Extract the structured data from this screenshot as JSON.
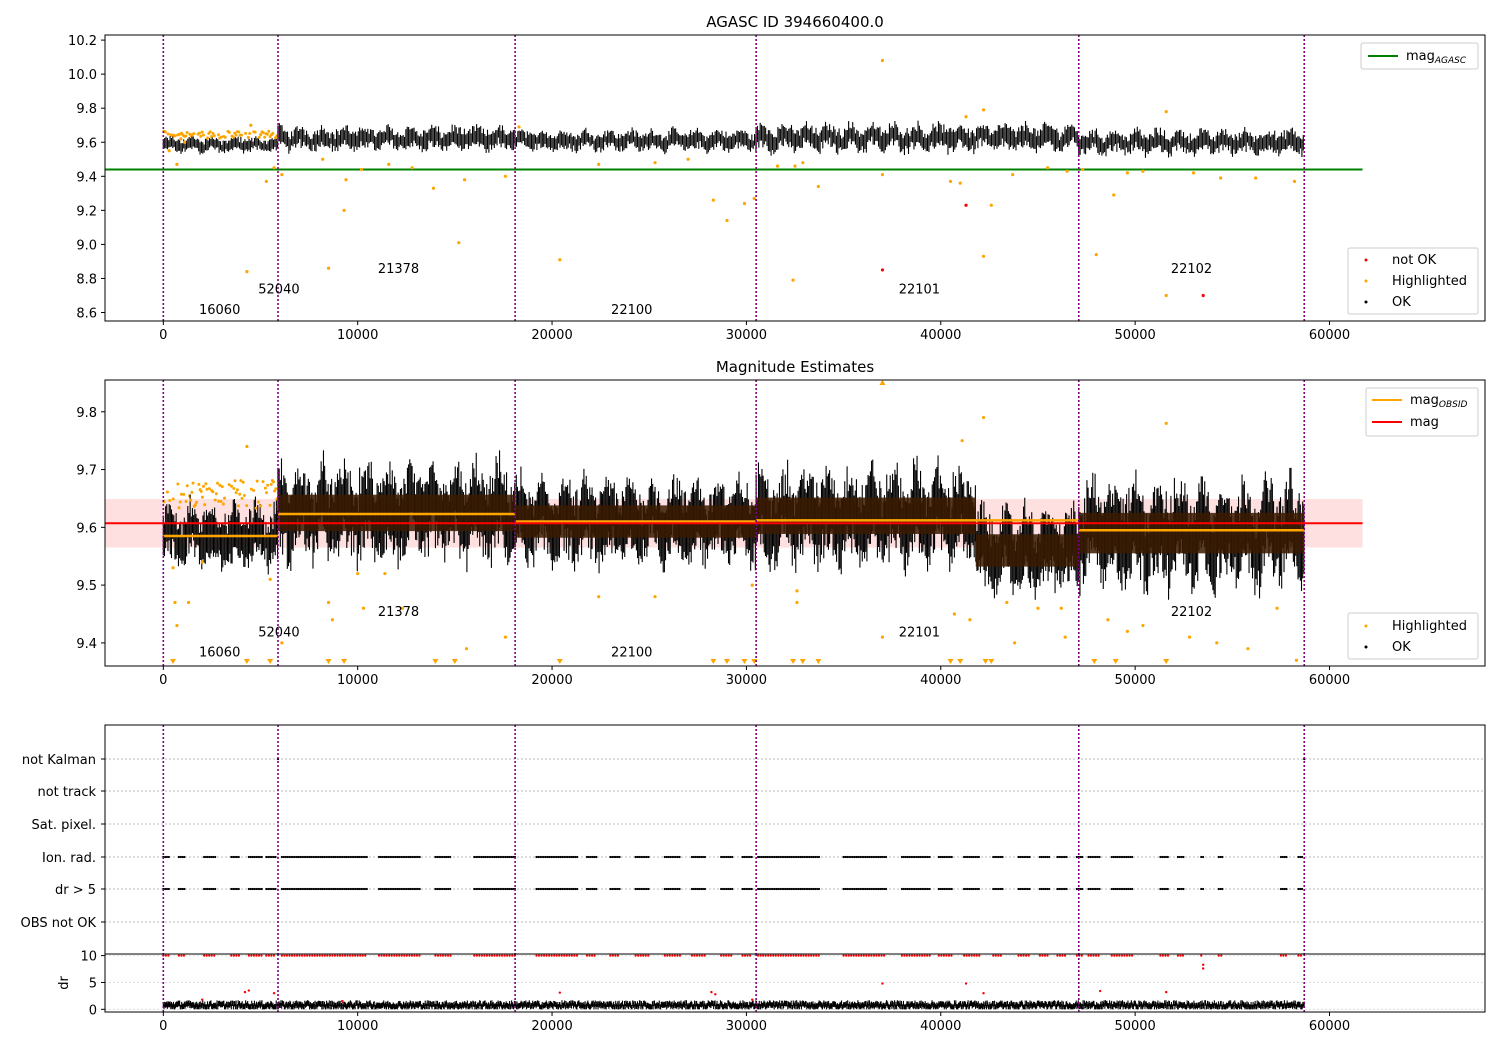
{
  "chart_data": [
    {
      "type": "scatter",
      "title": "AGASC ID 394660400.0",
      "xlim": [
        -3000,
        68000
      ],
      "ylim": [
        8.55,
        10.23
      ],
      "x_ticks": [
        0,
        10000,
        20000,
        30000,
        40000,
        50000,
        60000
      ],
      "y_ticks": [
        8.6,
        8.8,
        9.0,
        9.2,
        9.4,
        9.6,
        9.8,
        10.0,
        10.2
      ],
      "obsid_boundaries": [
        0,
        5900,
        18100,
        30500,
        47100,
        58700
      ],
      "obsid_labels": [
        {
          "text": "16060",
          "x": 2900,
          "y": 8.62
        },
        {
          "text": "52040",
          "x": 5950,
          "y": 8.74
        },
        {
          "text": "21378",
          "x": 12100,
          "y": 8.86
        },
        {
          "text": "22100",
          "x": 24100,
          "y": 8.62
        },
        {
          "text": "22101",
          "x": 38900,
          "y": 8.74
        },
        {
          "text": "22102",
          "x": 52900,
          "y": 8.86
        }
      ],
      "mag_agasc": 9.44,
      "mag_agasc_xrange": [
        -3000,
        61700
      ],
      "segments": [
        {
          "x": [
            0,
            5900
          ],
          "mean": 9.585,
          "half_width": 0.025,
          "color": "orange"
        },
        {
          "x": [
            5900,
            18100
          ],
          "mean": 9.62,
          "half_width": 0.04,
          "color": "black"
        },
        {
          "x": [
            18100,
            30500
          ],
          "mean": 9.61,
          "half_width": 0.035,
          "color": "black"
        },
        {
          "x": [
            30500,
            47100
          ],
          "mean": 9.625,
          "half_width": 0.045,
          "color": "black"
        },
        {
          "x": [
            47100,
            58700
          ],
          "mean": 9.6,
          "half_width": 0.04,
          "color": "black"
        }
      ],
      "highlighted_points": [
        [
          300,
          9.55
        ],
        [
          700,
          9.47
        ],
        [
          900,
          9.62
        ],
        [
          1100,
          9.6
        ],
        [
          4300,
          8.84
        ],
        [
          4500,
          9.7
        ],
        [
          5300,
          9.37
        ],
        [
          5700,
          9.45
        ],
        [
          6100,
          9.41
        ],
        [
          8500,
          8.86
        ],
        [
          8200,
          9.5
        ],
        [
          9300,
          9.2
        ],
        [
          9400,
          9.38
        ],
        [
          10200,
          9.44
        ],
        [
          11600,
          9.47
        ],
        [
          12800,
          9.45
        ],
        [
          13900,
          9.33
        ],
        [
          15200,
          9.01
        ],
        [
          15500,
          9.38
        ],
        [
          17600,
          9.4
        ],
        [
          18300,
          9.69
        ],
        [
          20400,
          8.91
        ],
        [
          22400,
          9.47
        ],
        [
          25300,
          9.48
        ],
        [
          27000,
          9.5
        ],
        [
          28300,
          9.26
        ],
        [
          29000,
          9.14
        ],
        [
          29900,
          9.24
        ],
        [
          30400,
          9.27
        ],
        [
          31600,
          9.46
        ],
        [
          32400,
          8.79
        ],
        [
          32500,
          9.46
        ],
        [
          32900,
          9.48
        ],
        [
          33700,
          9.34
        ],
        [
          37000,
          10.08
        ],
        [
          37000,
          9.41
        ],
        [
          40500,
          9.37
        ],
        [
          41000,
          9.36
        ],
        [
          41300,
          9.75
        ],
        [
          42200,
          9.79
        ],
        [
          42200,
          8.93
        ],
        [
          42600,
          9.23
        ],
        [
          43700,
          9.41
        ],
        [
          45500,
          9.45
        ],
        [
          46500,
          9.43
        ],
        [
          47300,
          9.44
        ],
        [
          48000,
          8.94
        ],
        [
          48900,
          9.29
        ],
        [
          49600,
          9.42
        ],
        [
          50400,
          9.43
        ],
        [
          51600,
          9.78
        ],
        [
          51600,
          8.7
        ],
        [
          53000,
          9.42
        ],
        [
          54400,
          9.39
        ],
        [
          56200,
          9.39
        ],
        [
          58200,
          9.37
        ]
      ],
      "not_ok_points": [
        [
          37000,
          8.85
        ],
        [
          41300,
          9.23
        ],
        [
          53500,
          8.7
        ]
      ],
      "legend_upper": [
        "mag_AGASC"
      ],
      "legend_lower": [
        "not OK",
        "Highlighted",
        "OK"
      ],
      "legend_upper_loc": "upper right",
      "legend_lower_loc": "lower right"
    },
    {
      "type": "scatter",
      "title": "Magnitude Estimates",
      "xlim": [
        -3000,
        68000
      ],
      "ylim": [
        9.36,
        9.855
      ],
      "x_ticks": [
        0,
        10000,
        20000,
        30000,
        40000,
        50000,
        60000
      ],
      "y_ticks": [
        9.4,
        9.5,
        9.6,
        9.7,
        9.8
      ],
      "obsid_boundaries": [
        0,
        5900,
        18100,
        30500,
        47100,
        58700
      ],
      "obsid_labels": [
        {
          "text": "16060",
          "x": 2900,
          "y": 9.385
        },
        {
          "text": "52040",
          "x": 5950,
          "y": 9.42
        },
        {
          "text": "21378",
          "x": 12100,
          "y": 9.455
        },
        {
          "text": "22100",
          "x": 24100,
          "y": 9.385
        },
        {
          "text": "22101",
          "x": 38900,
          "y": 9.42
        },
        {
          "text": "22102",
          "x": 52900,
          "y": 9.455
        }
      ],
      "mag": 9.607,
      "mag_band": [
        9.565,
        9.649
      ],
      "mag_xrange": [
        -3000,
        61700
      ],
      "mag_obsid": [
        {
          "x": [
            0,
            5900
          ],
          "mean": 9.585
        },
        {
          "x": [
            5900,
            18100
          ],
          "mean": 9.623
        },
        {
          "x": [
            18100,
            30500
          ],
          "mean": 9.61
        },
        {
          "x": [
            30500,
            47100
          ],
          "mean": 9.612
        },
        {
          "x": [
            47100,
            58700
          ],
          "mean": 9.595
        }
      ],
      "segments": [
        {
          "x": [
            0,
            5900
          ],
          "mean": 9.585,
          "half_width": 0.03,
          "color": "orange"
        },
        {
          "x": [
            5900,
            18100
          ],
          "mean": 9.625,
          "half_width": 0.045,
          "color": "black"
        },
        {
          "x": [
            18100,
            30500
          ],
          "mean": 9.61,
          "half_width": 0.04,
          "color": "black"
        },
        {
          "x": [
            30500,
            41800
          ],
          "mean": 9.62,
          "half_width": 0.045,
          "color": "black"
        },
        {
          "x": [
            41800,
            47100
          ],
          "mean": 9.56,
          "half_width": 0.04,
          "color": "black"
        },
        {
          "x": [
            47100,
            58700
          ],
          "mean": 9.59,
          "half_width": 0.05,
          "color": "black"
        }
      ],
      "highlighted_points": [
        [
          500,
          9.53
        ],
        [
          600,
          9.47
        ],
        [
          700,
          9.43
        ],
        [
          1300,
          9.47
        ],
        [
          2000,
          9.54
        ],
        [
          4300,
          9.74
        ],
        [
          5500,
          9.51
        ],
        [
          6100,
          9.4
        ],
        [
          8500,
          9.47
        ],
        [
          8700,
          9.44
        ],
        [
          10000,
          9.52
        ],
        [
          10300,
          9.46
        ],
        [
          11400,
          9.52
        ],
        [
          12300,
          9.46
        ],
        [
          15600,
          9.39
        ],
        [
          17600,
          9.41
        ],
        [
          22400,
          9.48
        ],
        [
          25300,
          9.48
        ],
        [
          30300,
          9.5
        ],
        [
          32600,
          9.49
        ],
        [
          32600,
          9.47
        ],
        [
          37000,
          9.85
        ],
        [
          37000,
          9.41
        ],
        [
          40700,
          9.45
        ],
        [
          41100,
          9.75
        ],
        [
          41500,
          9.44
        ],
        [
          42200,
          9.79
        ],
        [
          43400,
          9.47
        ],
        [
          43800,
          9.4
        ],
        [
          45000,
          9.46
        ],
        [
          46200,
          9.46
        ],
        [
          46400,
          9.41
        ],
        [
          48600,
          9.44
        ],
        [
          49600,
          9.42
        ],
        [
          50400,
          9.43
        ],
        [
          51600,
          9.78
        ],
        [
          52800,
          9.41
        ],
        [
          54200,
          9.4
        ],
        [
          55800,
          9.39
        ],
        [
          57300,
          9.46
        ],
        [
          58300,
          9.37
        ]
      ],
      "low_markers_x": [
        500,
        4300,
        5500,
        8500,
        9300,
        14000,
        15000,
        20400,
        28300,
        29000,
        29900,
        30400,
        32400,
        32900,
        33700,
        40500,
        41000,
        42300,
        42600,
        47900,
        49000,
        51600
      ],
      "legend_upper": [
        "mag_OBSID",
        "mag"
      ],
      "legend_lower": [
        "Highlighted",
        "OK"
      ],
      "legend_upper_loc": "upper right",
      "legend_lower_loc": "lower right"
    },
    {
      "type": "scatter",
      "title": "",
      "xlim": [
        -3000,
        68000
      ],
      "x_ticks": [
        0,
        10000,
        20000,
        30000,
        40000,
        50000,
        60000
      ],
      "categories": [
        "not Kalman",
        "not track",
        "Sat. pixel.",
        "Ion. rad.",
        "dr > 5",
        "OBS not OK"
      ],
      "obsid_boundaries": [
        0,
        5900,
        18100,
        30500,
        47100,
        58700
      ],
      "flag_x_ranges": [
        [
          0,
          300
        ],
        [
          800,
          1100
        ],
        [
          2100,
          2700
        ],
        [
          3500,
          3900
        ],
        [
          4400,
          5100
        ],
        [
          5300,
          5800
        ],
        [
          6100,
          10500
        ],
        [
          11100,
          13200
        ],
        [
          14000,
          14800
        ],
        [
          16000,
          18100
        ],
        [
          19200,
          21300
        ],
        [
          21800,
          22300
        ],
        [
          23000,
          23500
        ],
        [
          24300,
          25000
        ],
        [
          25800,
          26600
        ],
        [
          27200,
          27900
        ],
        [
          28700,
          29300
        ],
        [
          29800,
          30300
        ],
        [
          30600,
          33800
        ],
        [
          35000,
          37200
        ],
        [
          38000,
          39500
        ],
        [
          39900,
          40600
        ],
        [
          41200,
          42000
        ],
        [
          42700,
          43200
        ],
        [
          44000,
          44600
        ],
        [
          45100,
          45600
        ],
        [
          46000,
          46500
        ],
        [
          47000,
          47300
        ],
        [
          47600,
          48200
        ],
        [
          48800,
          49900
        ],
        [
          51300,
          51700
        ],
        [
          52200,
          52500
        ],
        [
          53400,
          53500
        ],
        [
          54300,
          54500
        ],
        [
          57500,
          57800
        ],
        [
          58400,
          58600
        ]
      ]
    },
    {
      "type": "scatter",
      "title": "",
      "ylabel": "dr",
      "xlim": [
        -3000,
        68000
      ],
      "ylim": [
        -0.5,
        10.3
      ],
      "x_ticks": [
        0,
        10000,
        20000,
        30000,
        40000,
        50000,
        60000
      ],
      "y_ticks": [
        0,
        5,
        10
      ],
      "obsid_boundaries": [
        0,
        5900,
        18100,
        30500,
        47100,
        58700
      ],
      "outlier_points": [
        [
          2000,
          1.8
        ],
        [
          4200,
          3.2
        ],
        [
          4400,
          3.5
        ],
        [
          5700,
          3.0
        ],
        [
          9200,
          1.5
        ],
        [
          20400,
          3.1
        ],
        [
          28200,
          3.2
        ],
        [
          28400,
          2.8
        ],
        [
          30300,
          1.8
        ],
        [
          37000,
          4.8
        ],
        [
          41300,
          4.8
        ],
        [
          42200,
          3.0
        ],
        [
          48200,
          3.4
        ],
        [
          51600,
          3.2
        ],
        [
          53500,
          7.6
        ],
        [
          53500,
          8.3
        ]
      ]
    }
  ]
}
